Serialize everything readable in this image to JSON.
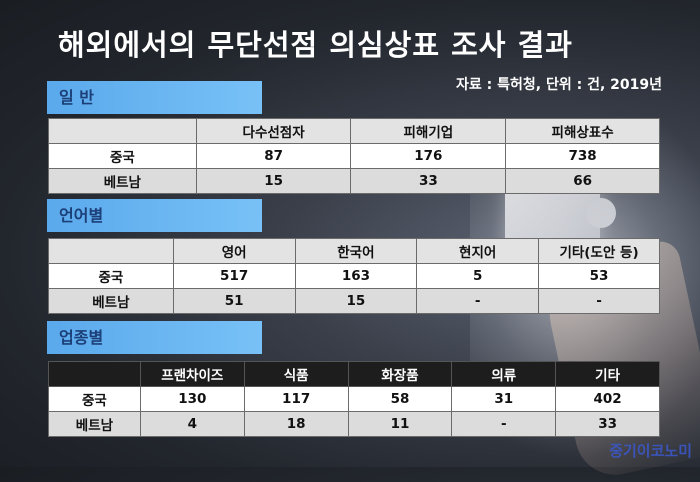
{
  "title": "해외에서의 무단선점 의심상표 조사 결과",
  "source": "자료 : 특허청, 단위 : 건, 2019년",
  "sections": [
    {
      "label": "일 반",
      "headers": [
        "",
        "다수선점자",
        "피해기업",
        "피해상표수"
      ],
      "rows": [
        [
          "중국",
          "87",
          "176",
          "738"
        ],
        [
          "베트남",
          "15",
          "33",
          "66"
        ]
      ]
    },
    {
      "label": "언어별",
      "headers": [
        "",
        "영어",
        "한국어",
        "현지어",
        "기타(도안 등)"
      ],
      "rows": [
        [
          "중국",
          "517",
          "163",
          "5",
          "53"
        ],
        [
          "베트남",
          "51",
          "15",
          "-",
          "-"
        ]
      ]
    },
    {
      "label": "업종별",
      "headers": [
        "",
        "프랜차이즈",
        "식품",
        "화장품",
        "의류",
        "기타"
      ],
      "rows": [
        [
          "중국",
          "130",
          "117",
          "58",
          "31",
          "402"
        ],
        [
          "베트남",
          "4",
          "18",
          "11",
          "-",
          "33"
        ]
      ]
    }
  ],
  "watermark": "중기이코노미",
  "colors": {
    "section_label_bg": "#5aa9ec",
    "section_label_text": "#1c3f78",
    "watermark": "#3b57c4"
  }
}
